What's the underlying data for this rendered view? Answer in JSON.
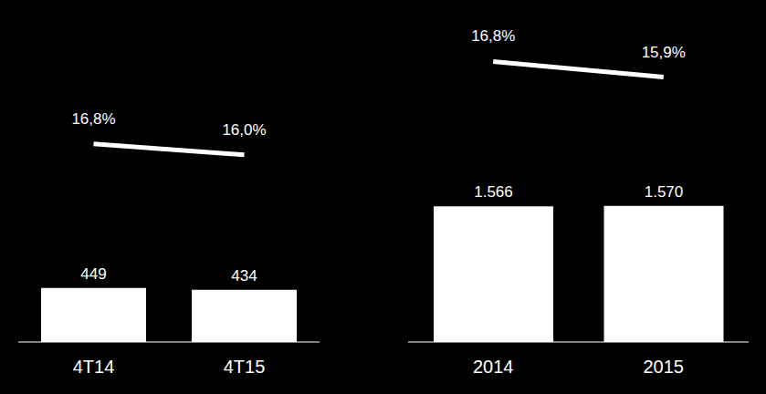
{
  "chart_data": [
    {
      "type": "bar",
      "categories": [
        "4T14",
        "4T15"
      ],
      "data_labels": true,
      "tick_labels": "x",
      "series": [
        {
          "type": "bar",
          "color": "#ffffff",
          "values": [
            449,
            434
          ]
        },
        {
          "type": "line",
          "axis": "y2",
          "color": "#ffffff",
          "values": [
            16.8,
            16.0
          ],
          "value_labels": [
            "16,8%",
            "16,0%"
          ]
        }
      ]
    },
    {
      "type": "bar",
      "categories": [
        "2014",
        "2015"
      ],
      "data_labels": true,
      "tick_labels": "x",
      "series": [
        {
          "type": "bar",
          "color": "#ffffff",
          "values": [
            1566,
            1570
          ],
          "value_labels": [
            "1.566",
            "1.570"
          ]
        },
        {
          "type": "line",
          "axis": "y2",
          "color": "#ffffff",
          "values": [
            16.8,
            15.9
          ],
          "value_labels": [
            "16,8%",
            "15,9%"
          ]
        }
      ]
    }
  ]
}
